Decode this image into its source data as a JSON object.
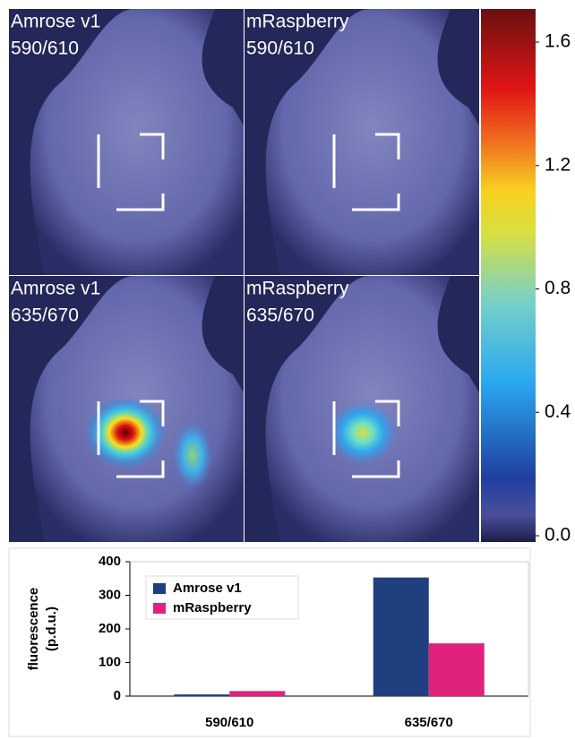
{
  "panels": [
    {
      "label": [
        "Amrose v1",
        "590/610"
      ]
    },
    {
      "label": [
        "mRaspberry",
        "590/610"
      ]
    },
    {
      "label": [
        "Amrose v1",
        "635/670"
      ]
    },
    {
      "label": [
        "mRaspberry",
        "635/670"
      ]
    }
  ],
  "colorbar": {
    "lim": [
      0,
      1.7
    ],
    "ticks": [
      {
        "value": 0,
        "label": "0.0"
      },
      0.4,
      0.8,
      1.2,
      1.6
    ]
  },
  "chart_data": {
    "type": "bar",
    "y_label": [
      "fluorescence",
      "(p.d.u.)"
    ],
    "categories": [
      "590/610",
      "635/670"
    ],
    "series": [
      {
        "name": "Amrose v1",
        "color": "#1f3f7f",
        "values": [
          5,
          353
        ]
      },
      {
        "name": "mRaspberry",
        "color": "#e0227c",
        "values": [
          15,
          157
        ]
      }
    ],
    "ylim": [
      0,
      400
    ],
    "yticks": [
      0,
      100,
      200,
      300,
      400
    ],
    "grid": false,
    "legend": "upper left"
  }
}
